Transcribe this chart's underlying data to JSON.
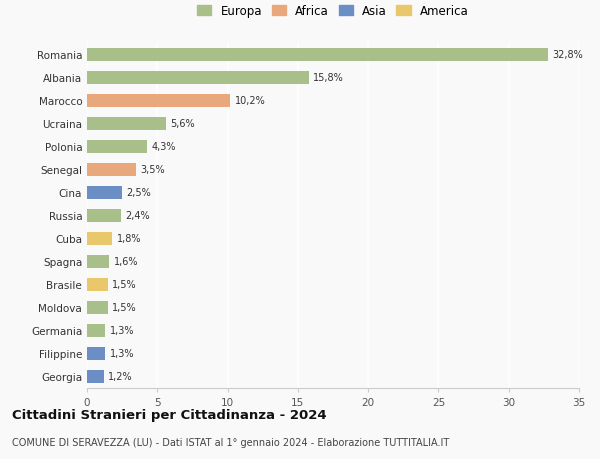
{
  "categories": [
    "Georgia",
    "Filippine",
    "Germania",
    "Moldova",
    "Brasile",
    "Spagna",
    "Cuba",
    "Russia",
    "Cina",
    "Senegal",
    "Polonia",
    "Ucraina",
    "Marocco",
    "Albania",
    "Romania"
  ],
  "values": [
    1.2,
    1.3,
    1.3,
    1.5,
    1.5,
    1.6,
    1.8,
    2.4,
    2.5,
    3.5,
    4.3,
    5.6,
    10.2,
    15.8,
    32.8
  ],
  "labels": [
    "1,2%",
    "1,3%",
    "1,3%",
    "1,5%",
    "1,5%",
    "1,6%",
    "1,8%",
    "2,4%",
    "2,5%",
    "3,5%",
    "4,3%",
    "5,6%",
    "10,2%",
    "15,8%",
    "32,8%"
  ],
  "colors": [
    "#6b8ec4",
    "#6b8ec4",
    "#a8bf8a",
    "#a8bf8a",
    "#e8c86a",
    "#a8bf8a",
    "#e8c86a",
    "#a8bf8a",
    "#6b8ec4",
    "#e8a87c",
    "#a8bf8a",
    "#a8bf8a",
    "#e8a87c",
    "#a8bf8a",
    "#a8bf8a"
  ],
  "legend": [
    {
      "label": "Europa",
      "color": "#a8bf8a"
    },
    {
      "label": "Africa",
      "color": "#e8a87c"
    },
    {
      "label": "Asia",
      "color": "#6b8ec4"
    },
    {
      "label": "America",
      "color": "#e8c86a"
    }
  ],
  "title": "Cittadini Stranieri per Cittadinanza - 2024",
  "subtitle": "COMUNE DI SERAVEZZA (LU) - Dati ISTAT al 1° gennaio 2024 - Elaborazione TUTTITALIA.IT",
  "xlim": [
    0,
    35
  ],
  "xticks": [
    0,
    5,
    10,
    15,
    20,
    25,
    30,
    35
  ],
  "background_color": "#f9f9f9",
  "grid_color": "#ffffff",
  "bar_height": 0.55
}
